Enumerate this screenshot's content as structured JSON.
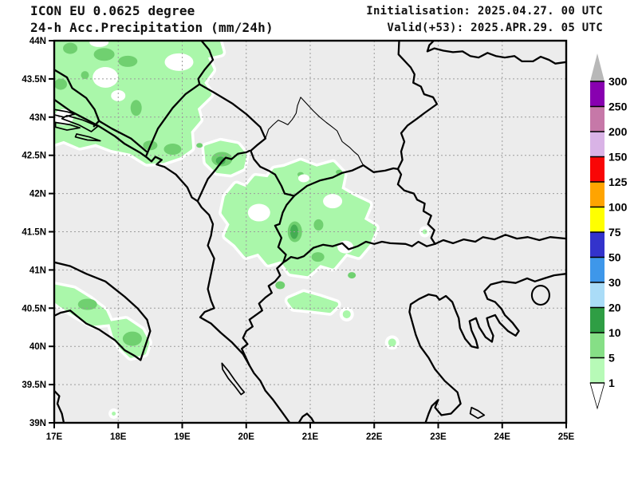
{
  "header": {
    "model": "ICON EU 0.0625 degree",
    "product": "24-h Acc.Precipitation (mm/24h)",
    "initialisation": "Initialisation: 2025.04.27. 00 UTC",
    "valid": "Valid(+53): 2025.APR.29. 05 UTC"
  },
  "map": {
    "x_labels": [
      "17E",
      "18E",
      "19E",
      "20E",
      "21E",
      "22E",
      "23E",
      "24E",
      "25E"
    ],
    "x_values": [
      17,
      18,
      19,
      20,
      21,
      22,
      23,
      24,
      25
    ],
    "y_labels": [
      "44N",
      "43.5N",
      "43N",
      "42.5N",
      "42N",
      "41.5N",
      "41N",
      "40.5N",
      "40N",
      "39.5N",
      "39N"
    ],
    "y_values": [
      44,
      43.5,
      43,
      42.5,
      42,
      41.5,
      41,
      40.5,
      40,
      39.5,
      39
    ],
    "lon_min": 17,
    "lon_max": 25,
    "lat_min": 39,
    "lat_max": 44
  },
  "colorbar": {
    "levels": [
      "1",
      "5",
      "10",
      "20",
      "30",
      "50",
      "75",
      "100",
      "125",
      "150",
      "200",
      "250",
      "300"
    ],
    "colors": [
      "#b7fab7",
      "#86df86",
      "#2f9e44",
      "#aadcf7",
      "#3e97ea",
      "#3333cc",
      "#ffff00",
      "#ffa400",
      "#f90606",
      "#d9b3e6",
      "#c678a8",
      "#8800b0"
    ],
    "over_color": "#b8b8b8",
    "under_color": "#ffffff"
  },
  "palette": {
    "background": "#ececec",
    "precip_light": "#aaf7aa",
    "precip_medium": "#70d070",
    "precip_dark": "#44ad52",
    "trace_halo": "#ffffff",
    "grid": "#9c9c9c",
    "line": "#000000"
  },
  "chart_data": {
    "type": "heatmap",
    "title": "24-h accumulated precipitation (mm/24h), ICON EU 0.0625 degree",
    "x_axis": {
      "label": "longitude",
      "range_deg_e": [
        17,
        25
      ],
      "ticks": [
        "17E",
        "18E",
        "19E",
        "20E",
        "21E",
        "22E",
        "23E",
        "24E",
        "25E"
      ]
    },
    "y_axis": {
      "label": "latitude",
      "range_deg_n": [
        39,
        44
      ],
      "ticks": [
        "39N",
        "39.5N",
        "40N",
        "40.5N",
        "41N",
        "41.5N",
        "42N",
        "42.5N",
        "43N",
        "43.5N",
        "44N"
      ]
    },
    "scale_levels_mm": [
      1,
      5,
      10,
      20,
      30,
      50,
      75,
      100,
      125,
      150,
      200,
      250,
      300
    ],
    "values_shown_mm": "mostly 1-5 mm, embedded cores 5-10 mm, isolated spots 10-20 mm",
    "precip_regions": [
      "large area over Bosnia-Herzegovina and Dalmatian coast (1-10 mm)",
      "Montenegro / northern Albania border area (1-10 mm)",
      "Kosovo, North Macedonia, eastern Albania (1-10 mm)",
      "Puglia, SE Italy (1-5 mm)",
      "small patches NW Greece (1-5 mm)"
    ],
    "legend_position": "right vertical colorbar with over/under arrows"
  }
}
